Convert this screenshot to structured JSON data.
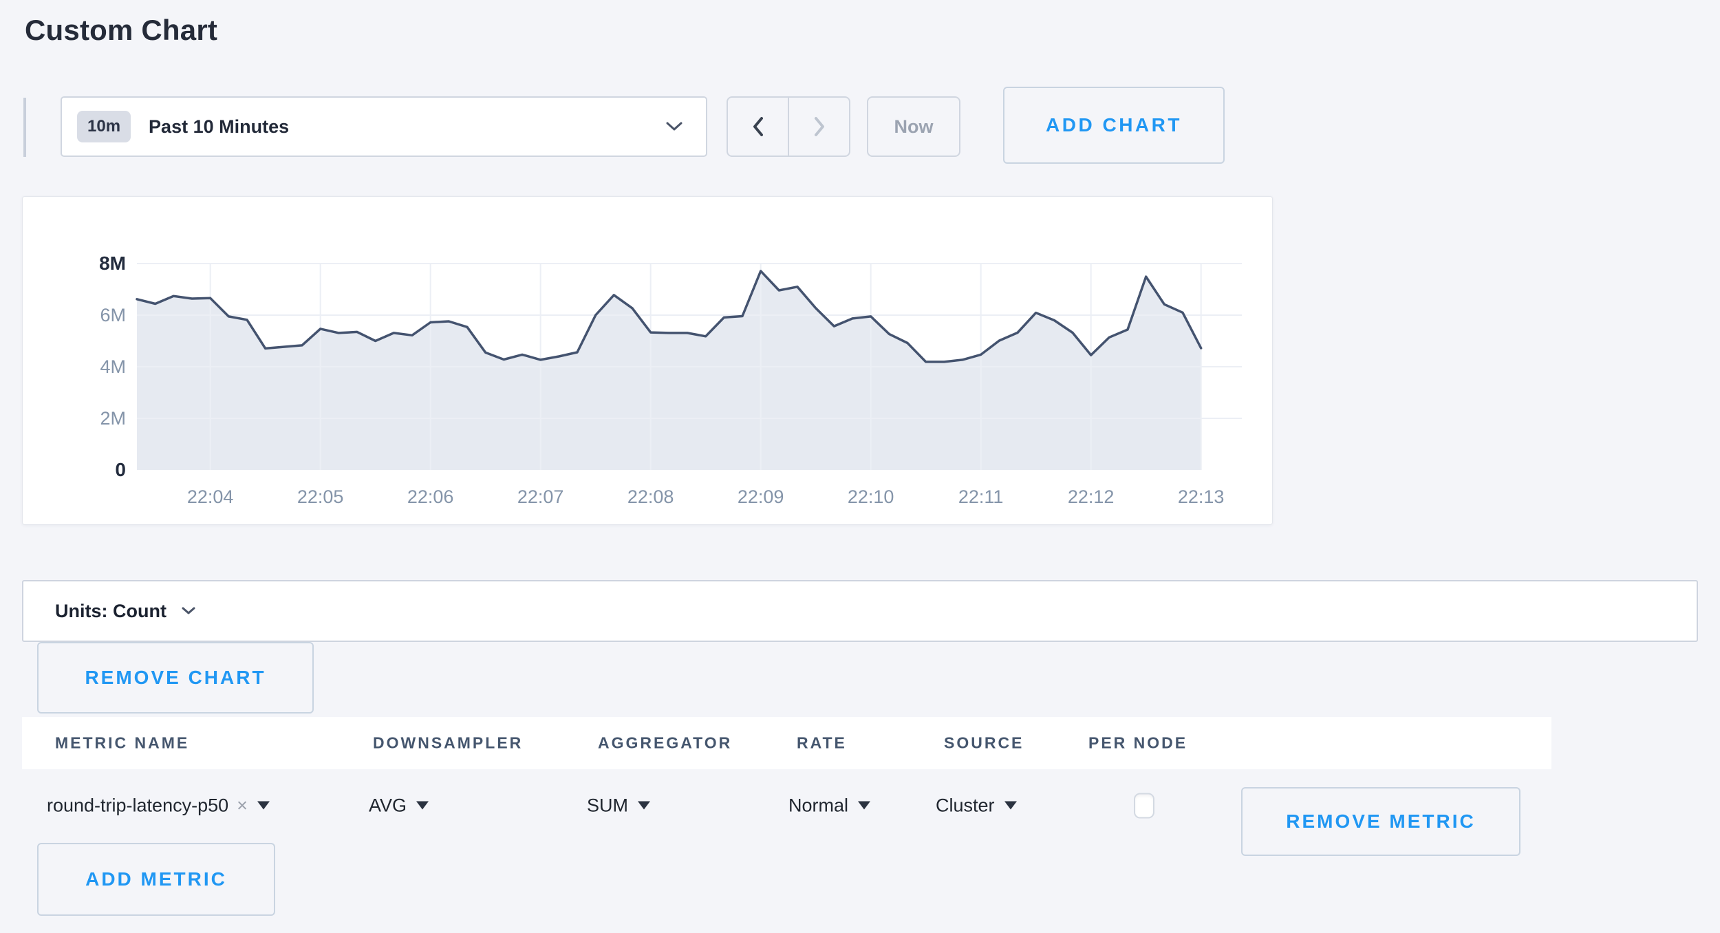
{
  "page": {
    "title": "Custom Chart",
    "background": "#f4f5f9",
    "accent_blue": "#2097f3"
  },
  "toolbar": {
    "range_badge": "10m",
    "range_label": "Past 10 Minutes",
    "now_label": "Now",
    "add_chart_label": "ADD CHART"
  },
  "chart_data": {
    "type": "area",
    "title": "",
    "xlabel": "",
    "ylabel": "",
    "unit": "Count",
    "x_start": "22:03:20",
    "x_interval_seconds": 10,
    "x_tick_labels": [
      "22:04",
      "22:05",
      "22:06",
      "22:07",
      "22:08",
      "22:09",
      "22:10",
      "22:11",
      "22:12",
      "22:13"
    ],
    "y_tick_labels": [
      "0",
      "2M",
      "4M",
      "6M",
      "8M"
    ],
    "ylim": [
      0,
      8000000
    ],
    "grid": true,
    "legend_position": "none",
    "line_color": "#44536f",
    "fill_color": "#e6eaf1",
    "series": [
      {
        "name": "round-trip-latency-p50",
        "values_millions": [
          6.62,
          6.44,
          6.74,
          6.64,
          6.66,
          5.95,
          5.82,
          4.71,
          4.77,
          4.83,
          5.47,
          5.31,
          5.35,
          5.0,
          5.31,
          5.22,
          5.72,
          5.76,
          5.54,
          4.55,
          4.28,
          4.47,
          4.27,
          4.4,
          4.56,
          6.0,
          6.78,
          6.27,
          5.33,
          5.31,
          5.31,
          5.18,
          5.91,
          5.96,
          7.71,
          6.96,
          7.1,
          6.27,
          5.57,
          5.87,
          5.95,
          5.27,
          4.92,
          4.19,
          4.19,
          4.27,
          4.47,
          5.01,
          5.32,
          6.09,
          5.8,
          5.32,
          4.45,
          5.14,
          5.44,
          7.49,
          6.42,
          6.1,
          4.72
        ]
      }
    ]
  },
  "units_bar": {
    "label": "Units: Count"
  },
  "chart_actions": {
    "remove_chart_label": "REMOVE CHART"
  },
  "metrics_table": {
    "headers": [
      "METRIC NAME",
      "DOWNSAMPLER",
      "AGGREGATOR",
      "RATE",
      "SOURCE",
      "PER NODE"
    ],
    "rows": [
      {
        "metric_name": "round-trip-latency-p50",
        "downsampler": "AVG",
        "aggregator": "SUM",
        "rate": "Normal",
        "source": "Cluster",
        "per_node_checked": false,
        "remove_label": "REMOVE METRIC"
      }
    ],
    "add_metric_label": "ADD METRIC"
  },
  "icons": {
    "clear": "×"
  }
}
